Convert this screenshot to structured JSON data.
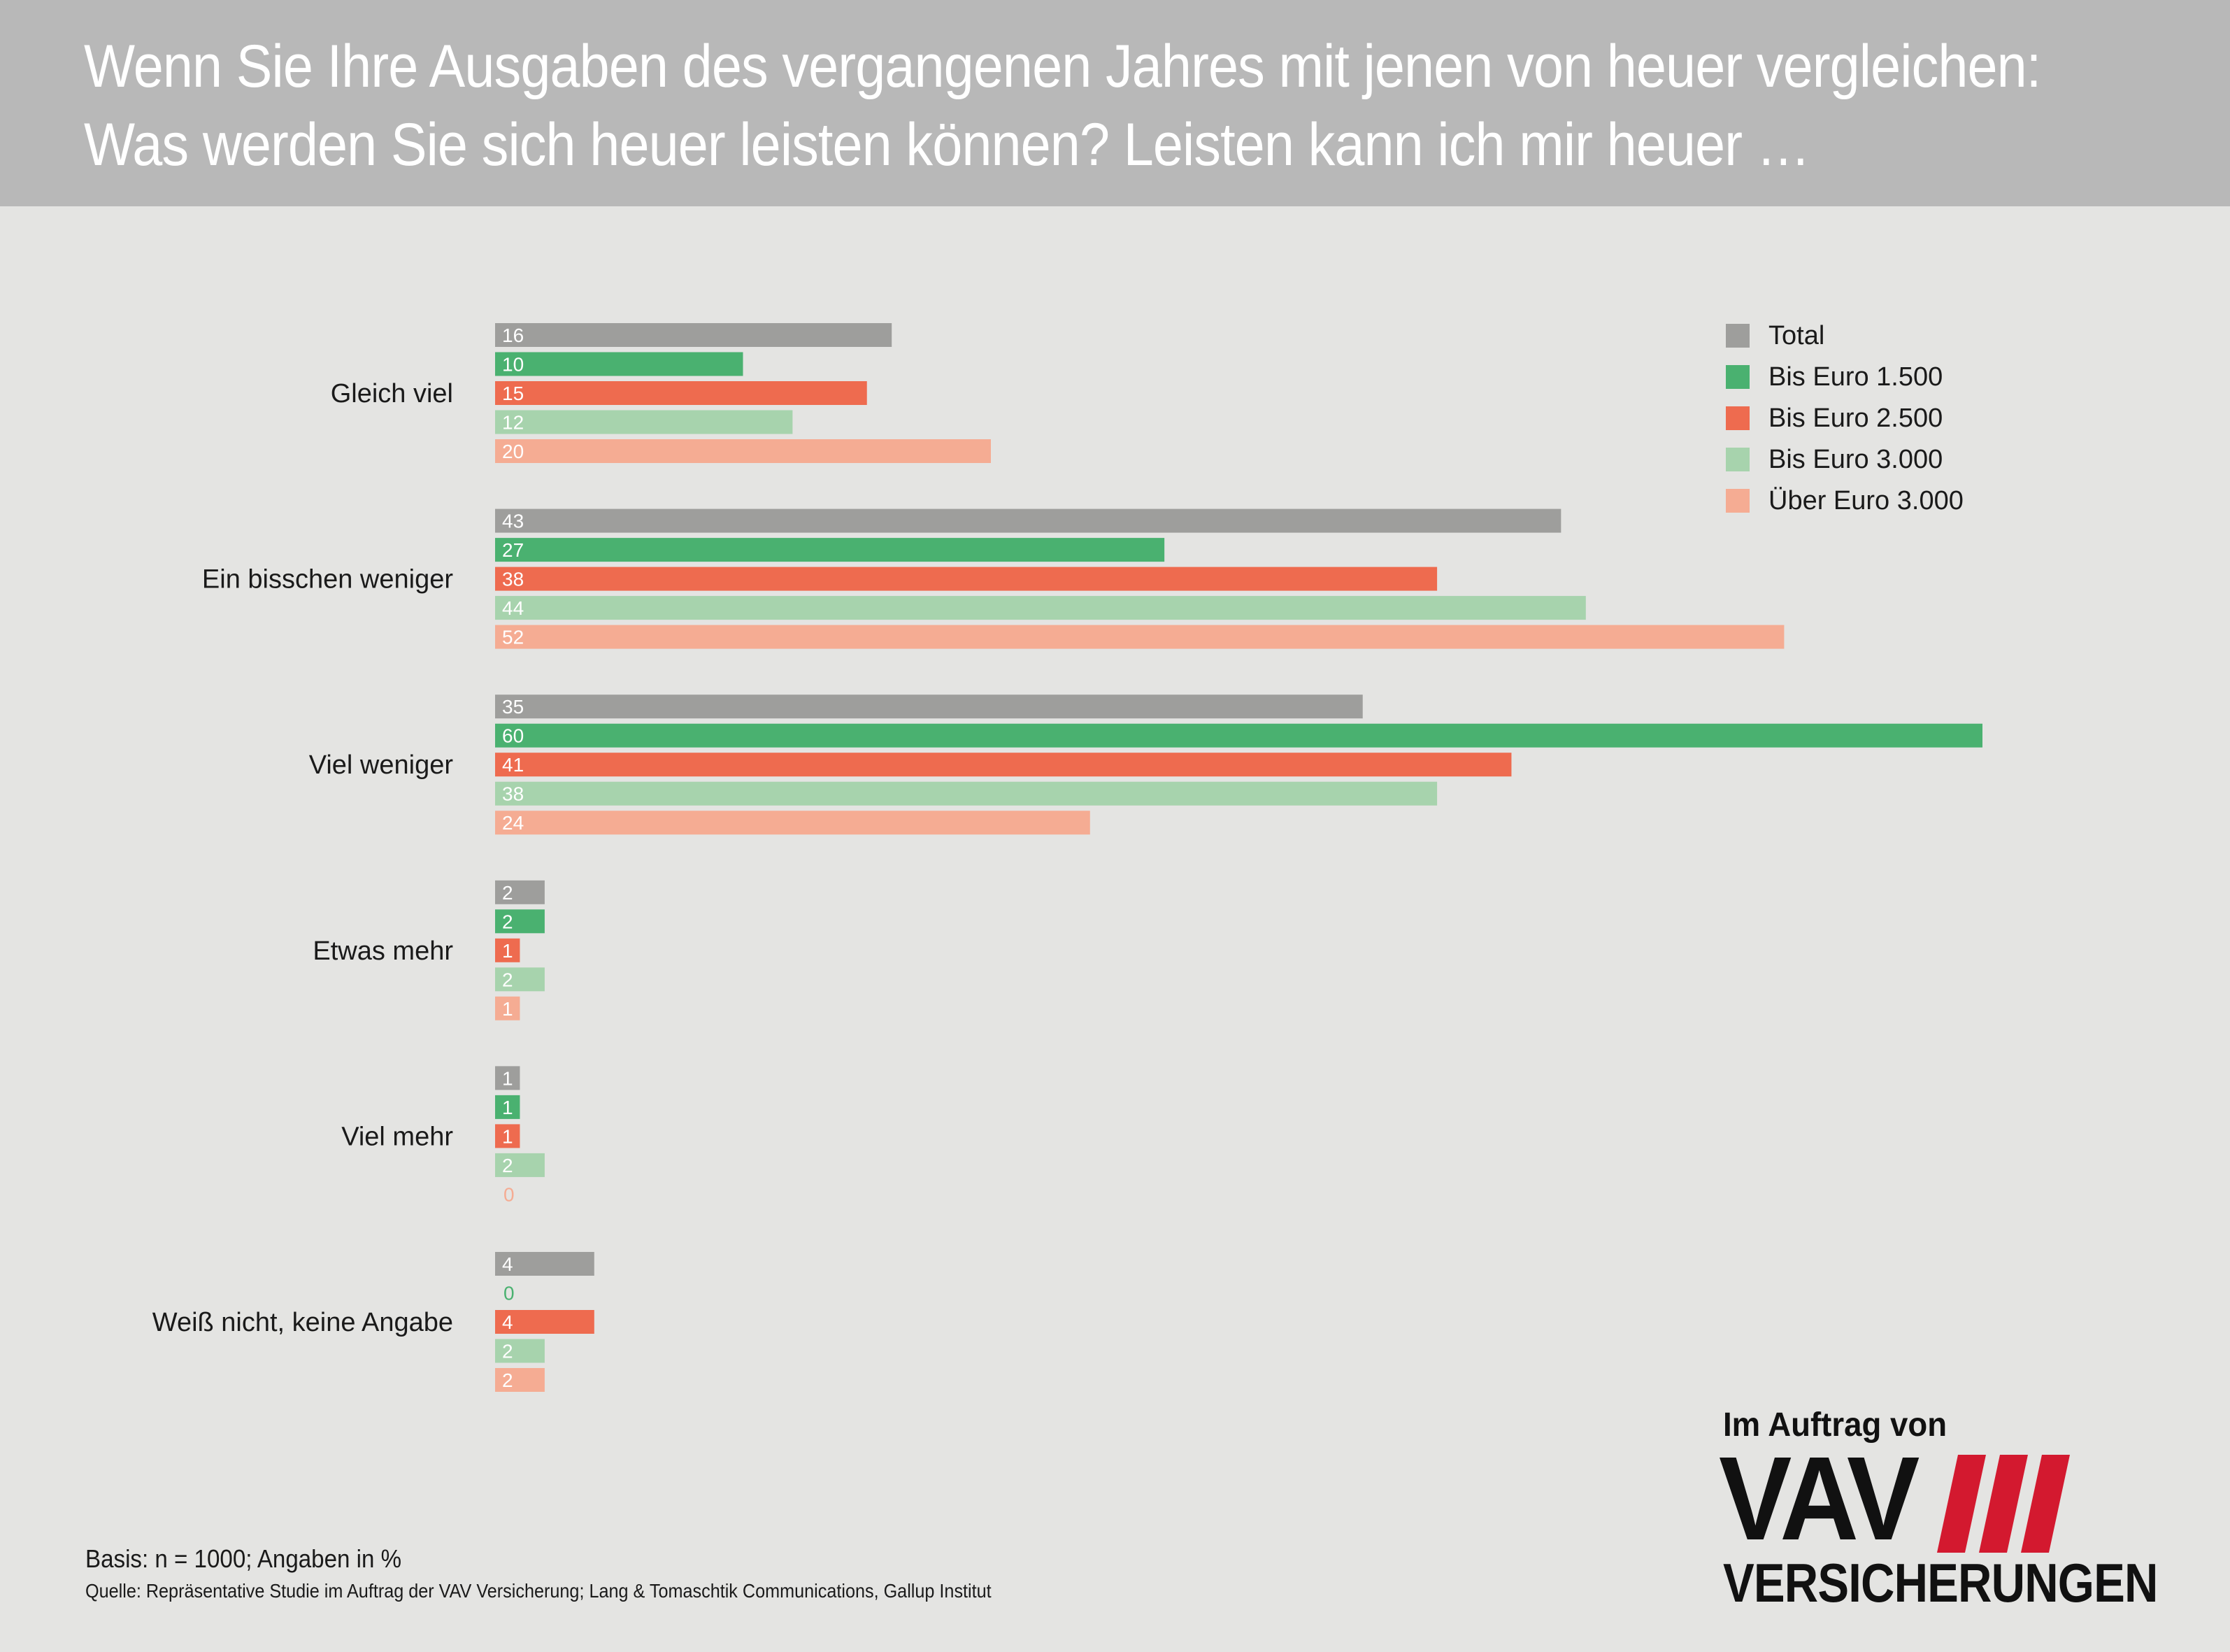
{
  "title": {
    "line1": "Wenn Sie Ihre Ausgaben des vergangenen Jahres mit jenen von heuer vergleichen:",
    "line2": "Was werden Sie sich heuer leisten können? Leisten kann ich mir heuer …"
  },
  "chart_data": {
    "type": "bar",
    "orientation": "horizontal",
    "title": "Wenn Sie Ihre Ausgaben des vergangenen Jahres mit jenen von heuer vergleichen: Was werden Sie sich heuer leisten können? Leisten kann ich mir heuer …",
    "unit": "%",
    "xlim": [
      0,
      60
    ],
    "grid": false,
    "legend_position": "top-right",
    "categories": [
      "Gleich viel",
      "Ein bisschen weniger",
      "Viel weniger",
      "Etwas mehr",
      "Viel mehr",
      "Weiß nicht, keine Angabe"
    ],
    "series": [
      {
        "name": "Total",
        "color": "#9e9e9c",
        "values": [
          16,
          43,
          35,
          2,
          1,
          4
        ]
      },
      {
        "name": "Bis Euro 1.500",
        "color": "#4ab170",
        "values": [
          10,
          27,
          60,
          2,
          1,
          0
        ]
      },
      {
        "name": "Bis Euro 2.500",
        "color": "#ee6b4f",
        "values": [
          15,
          38,
          41,
          1,
          1,
          4
        ]
      },
      {
        "name": "Bis Euro 3.000",
        "color": "#a7d3ad",
        "values": [
          12,
          44,
          38,
          2,
          2,
          2
        ]
      },
      {
        "name": "Über Euro 3.000",
        "color": "#f5ac93",
        "values": [
          20,
          52,
          24,
          1,
          0,
          2
        ]
      }
    ]
  },
  "footer": {
    "basis": "Basis: n = 1000; Angaben in %",
    "source": "Quelle: Repräsentative Studie im Auftrag der VAV Versicherung; Lang & Tomaschtik Communications, Gallup Institut"
  },
  "logo": {
    "caption": "Im Auftrag von",
    "brand": "VAV",
    "sub": "VERSICHERUNGEN",
    "stripe_color": "#d3192f"
  }
}
